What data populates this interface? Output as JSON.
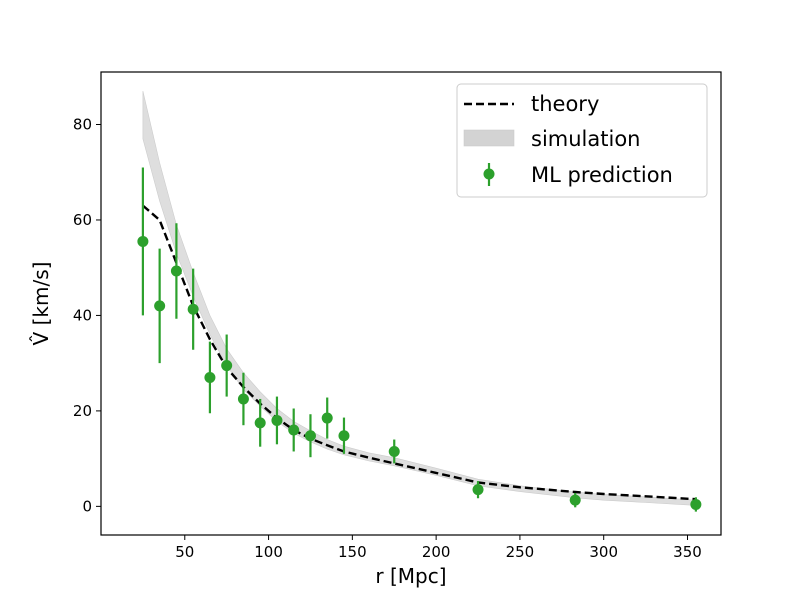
{
  "chart_data": {
    "type": "scatter",
    "title": "",
    "xlabel": "r [Mpc]",
    "ylabel": "V̂ [km/s]",
    "xlim": [
      0,
      370
    ],
    "ylim": [
      -6,
      91
    ],
    "x_ticks": [
      50,
      100,
      150,
      200,
      250,
      300,
      350
    ],
    "y_ticks": [
      0,
      20,
      40,
      60,
      80
    ],
    "grid": false,
    "legend_position": "top-right",
    "colors": {
      "theory": "#000000",
      "simulation": "#d3d3d3",
      "ml_prediction": "#2ca02c"
    },
    "series": [
      {
        "name": "theory",
        "kind": "dashed-line",
        "x": [
          25,
          35,
          45,
          55,
          65,
          75,
          85,
          95,
          105,
          115,
          125,
          135,
          145,
          160,
          175,
          200,
          225,
          250,
          283,
          300,
          325,
          355
        ],
        "y": [
          63,
          60,
          51,
          42,
          35,
          29,
          25,
          21.5,
          18.5,
          16,
          14.2,
          12.8,
          11.5,
          10.2,
          9,
          7,
          5,
          4,
          3,
          2.6,
          2.1,
          1.5
        ]
      },
      {
        "name": "simulation",
        "kind": "band",
        "x": [
          25,
          35,
          45,
          55,
          65,
          75,
          85,
          95,
          105,
          115,
          125,
          135,
          145,
          160,
          175,
          200,
          225,
          250,
          283,
          300,
          325,
          355
        ],
        "y_low": [
          77,
          64,
          53,
          44,
          36,
          29.5,
          24.5,
          21,
          17.8,
          15.3,
          13.5,
          12,
          10.8,
          9.5,
          8.5,
          6.5,
          4.3,
          3.1,
          1.8,
          1.3,
          0.8,
          0.2
        ],
        "y_high": [
          87,
          72,
          59,
          49,
          40,
          33,
          28,
          24,
          20.5,
          17.8,
          15.8,
          14,
          12.6,
          11.2,
          10.2,
          8,
          5.7,
          4.3,
          3,
          2.5,
          2,
          1.3
        ]
      },
      {
        "name": "ML prediction",
        "kind": "errorbar",
        "x": [
          25,
          35,
          45,
          55,
          65,
          75,
          85,
          95,
          105,
          115,
          125,
          135,
          145,
          175,
          225,
          283,
          355
        ],
        "y": [
          55.5,
          42,
          49.3,
          41.3,
          27,
          29.5,
          22.5,
          17.5,
          18,
          16,
          14.8,
          18.5,
          14.8,
          11.5,
          3.5,
          1.3,
          0.4
        ],
        "err": [
          15.5,
          12,
          10,
          8.5,
          7.5,
          6.5,
          5.5,
          5,
          5,
          4.5,
          4.5,
          4.3,
          3.8,
          2.5,
          1.8,
          1.5,
          1.5
        ]
      }
    ]
  }
}
